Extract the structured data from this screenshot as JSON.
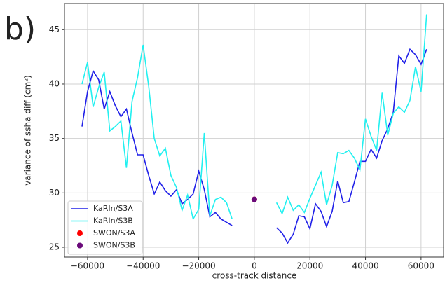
{
  "chart_data": {
    "type": "line",
    "panel_label": "b)",
    "x_label": "cross-track distance",
    "y_label": "variance of ssha diff (cm²)",
    "xlim": [
      -68300,
      68100
    ],
    "ylim": [
      24.1,
      47.4
    ],
    "xticks": [
      {
        "value": -60000,
        "label": "−60000"
      },
      {
        "value": -40000,
        "label": "−40000"
      },
      {
        "value": -20000,
        "label": "−20000"
      },
      0,
      20000,
      40000,
      60000
    ],
    "yticks": [
      25,
      30,
      35,
      40,
      45
    ],
    "grid": true,
    "legend": "lower left",
    "x": [
      -62000,
      -60000,
      -58000,
      -56000,
      -54000,
      -52000,
      -50000,
      -48000,
      -46000,
      -44000,
      -42000,
      -40000,
      -38000,
      -36000,
      -34000,
      -32000,
      -30000,
      -28000,
      -26000,
      -24000,
      -22000,
      -20000,
      -18000,
      -16000,
      -14000,
      -12000,
      -10000,
      -8000,
      -6000,
      -4000,
      -2000,
      0,
      2000,
      4000,
      6000,
      8000,
      10000,
      12000,
      14000,
      16000,
      18000,
      20000,
      22000,
      24000,
      26000,
      28000,
      30000,
      32000,
      34000,
      36000,
      38000,
      40000,
      42000,
      44000,
      46000,
      48000,
      50000,
      52000,
      54000,
      56000,
      58000,
      60000,
      62000
    ],
    "series": [
      {
        "name": "KaRIn/S3A",
        "color": "#2020e8",
        "kind": "line",
        "values": [
          36.1,
          39.3,
          41.2,
          40.4,
          37.7,
          39.3,
          38.0,
          37.0,
          37.7,
          35.5,
          33.5,
          33.5,
          31.6,
          29.9,
          31.0,
          30.2,
          29.7,
          30.3,
          29.0,
          29.4,
          29.9,
          32.0,
          30.3,
          27.8,
          28.2,
          27.6,
          27.3,
          27.0,
          null,
          null,
          null,
          null,
          null,
          null,
          null,
          26.8,
          26.3,
          25.4,
          26.2,
          27.9,
          27.8,
          26.7,
          29.0,
          28.3,
          26.9,
          28.3,
          31.1,
          29.1,
          29.2,
          31.0,
          32.9,
          32.9,
          34.0,
          33.2,
          34.8,
          35.9,
          37.4,
          42.6,
          41.9,
          43.2,
          42.7,
          41.8,
          43.2
        ]
      },
      {
        "name": "KaRIn/S3B",
        "color": "#22f0f0",
        "kind": "line",
        "values": [
          40.0,
          42.0,
          37.9,
          39.7,
          41.1,
          35.7,
          36.1,
          36.6,
          32.3,
          38.4,
          40.6,
          43.6,
          39.8,
          35.0,
          33.4,
          34.1,
          31.6,
          30.5,
          28.4,
          29.8,
          27.6,
          28.5,
          35.5,
          27.9,
          29.4,
          29.6,
          29.1,
          27.6,
          null,
          null,
          null,
          null,
          null,
          null,
          null,
          29.1,
          28.1,
          29.6,
          28.4,
          28.9,
          28.2,
          29.5,
          30.7,
          31.9,
          28.9,
          30.7,
          33.7,
          33.6,
          33.9,
          33.2,
          32.1,
          36.8,
          35.2,
          33.9,
          39.2,
          35.3,
          37.3,
          37.9,
          37.4,
          38.5,
          41.6,
          39.3,
          46.4
        ]
      },
      {
        "name": "SWON/S3A",
        "color": "#ff0000",
        "kind": "scatter",
        "x": [
          0
        ],
        "values": [
          29.4
        ]
      },
      {
        "name": "SWON/S3B",
        "color": "#6a0a7a",
        "kind": "scatter",
        "x": [
          0
        ],
        "values": [
          29.4
        ]
      }
    ]
  }
}
